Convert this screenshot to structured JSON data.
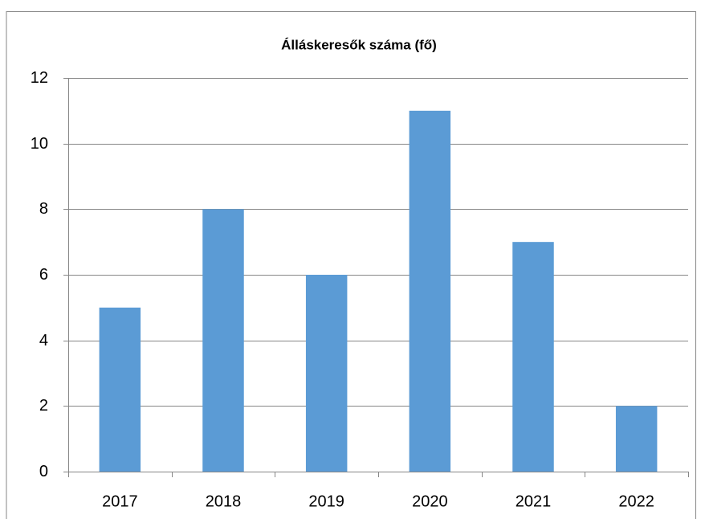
{
  "chart_data": {
    "type": "bar",
    "title": "Álláskeresők száma (fő)",
    "categories": [
      "2017",
      "2018",
      "2019",
      "2020",
      "2021",
      "2022"
    ],
    "values": [
      5,
      8,
      6,
      11,
      7,
      2
    ],
    "color": "#5b9bd5",
    "ylim": [
      0,
      12
    ],
    "yticks": [
      0,
      2,
      4,
      6,
      8,
      10,
      12
    ],
    "grid": true
  }
}
